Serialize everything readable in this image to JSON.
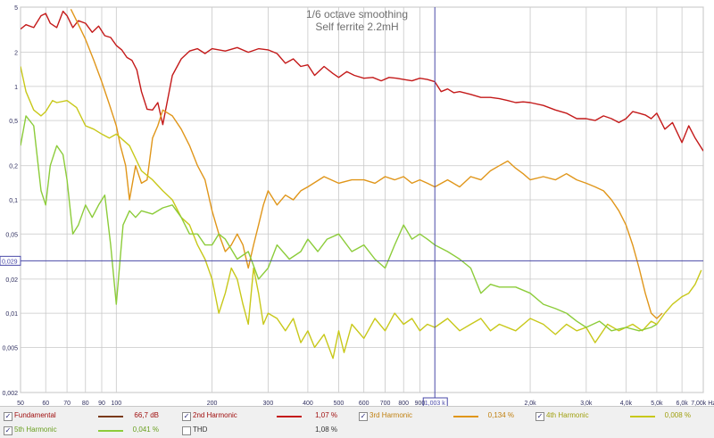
{
  "title": "1/6 octave smoothing",
  "subtitle": "Self ferrite 2.2mH",
  "colors": {
    "fundamental": "#b01212",
    "h2": "#c41a1a",
    "h3": "#e0961a",
    "h4": "#c8c81a",
    "h5": "#8ccc3a",
    "grid": "#c8c8c8",
    "cursor": "#4a4aa8",
    "label": "#2f2f5f",
    "title": "#707070"
  },
  "cursor": {
    "x_label": "1,003 k",
    "y_label": "0,029"
  },
  "legend": [
    {
      "name": "Fundamental",
      "value": "66,7 dB",
      "checked": true,
      "color": "#7a3a1a"
    },
    {
      "name": "2nd Harmonic",
      "value": "1,07 %",
      "checked": true,
      "color": "#c41a1a"
    },
    {
      "name": "3rd Harmonic",
      "value": "0,134 %",
      "checked": true,
      "color": "#e0961a"
    },
    {
      "name": "4th Harmonic",
      "value": "0,008 %",
      "checked": true,
      "color": "#c8c81a"
    },
    {
      "name": "5th Harmonic",
      "value": "0,041 %",
      "checked": true,
      "color": "#8ccc3a"
    },
    {
      "name": "THD",
      "value": "1,08 %",
      "checked": false,
      "color": "#333333"
    }
  ],
  "chart_data": {
    "type": "line",
    "title": "1/6 octave smoothing",
    "subtitle": "Self ferrite 2.2mH",
    "xscale": "log",
    "yscale": "log",
    "xlim": [
      50,
      7000
    ],
    "ylim": [
      0.002,
      5
    ],
    "xunit": "Hz",
    "grid": true,
    "x_ticks": [
      {
        "v": 50,
        "l": "50"
      },
      {
        "v": 60,
        "l": "60"
      },
      {
        "v": 70,
        "l": "70"
      },
      {
        "v": 80,
        "l": "80"
      },
      {
        "v": 90,
        "l": "90"
      },
      {
        "v": 100,
        "l": "100"
      },
      {
        "v": 200,
        "l": "200"
      },
      {
        "v": 300,
        "l": "300"
      },
      {
        "v": 400,
        "l": "400"
      },
      {
        "v": 500,
        "l": "500"
      },
      {
        "v": 600,
        "l": "600"
      },
      {
        "v": 700,
        "l": "700"
      },
      {
        "v": 800,
        "l": "800"
      },
      {
        "v": 900,
        "l": "900"
      },
      {
        "v": 2000,
        "l": "2,0k"
      },
      {
        "v": 3000,
        "l": "3,0k"
      },
      {
        "v": 4000,
        "l": "4,0k"
      },
      {
        "v": 5000,
        "l": "5,0k"
      },
      {
        "v": 6000,
        "l": "6,0k"
      },
      {
        "v": 7000,
        "l": "7,00k Hz"
      }
    ],
    "y_ticks": [
      {
        "v": 5,
        "l": "5"
      },
      {
        "v": 2,
        "l": "2"
      },
      {
        "v": 1,
        "l": "1"
      },
      {
        "v": 0.5,
        "l": "0,5"
      },
      {
        "v": 0.2,
        "l": "0,2"
      },
      {
        "v": 0.1,
        "l": "0,1"
      },
      {
        "v": 0.05,
        "l": "0,05"
      },
      {
        "v": 0.02,
        "l": "0,02"
      },
      {
        "v": 0.01,
        "l": "0,01"
      },
      {
        "v": 0.005,
        "l": "0,005"
      },
      {
        "v": 0.002,
        "l": "0,002"
      }
    ],
    "cursor_x": 1003,
    "cursor_y": 0.029,
    "series": [
      {
        "name": "2nd Harmonic",
        "color": "#c41a1a",
        "x": [
          50,
          52,
          55,
          58,
          60,
          62,
          65,
          68,
          70,
          73,
          76,
          80,
          84,
          88,
          92,
          96,
          100,
          104,
          108,
          112,
          116,
          120,
          125,
          130,
          135,
          140,
          150,
          160,
          170,
          180,
          190,
          200,
          220,
          240,
          260,
          280,
          300,
          320,
          340,
          360,
          380,
          400,
          420,
          450,
          480,
          500,
          530,
          560,
          600,
          640,
          680,
          720,
          760,
          800,
          850,
          900,
          950,
          1003,
          1050,
          1100,
          1150,
          1200,
          1300,
          1400,
          1500,
          1600,
          1700,
          1800,
          1900,
          2000,
          2200,
          2400,
          2600,
          2800,
          3000,
          3200,
          3400,
          3600,
          3800,
          4000,
          4200,
          4400,
          4600,
          4800,
          5000,
          5300,
          5600,
          6000,
          6300,
          6600,
          7000
        ],
        "y": [
          3.2,
          3.5,
          3.3,
          4.2,
          4.4,
          3.6,
          3.3,
          4.6,
          4.2,
          3.3,
          3.8,
          3.6,
          3.0,
          3.4,
          2.8,
          2.7,
          2.3,
          2.1,
          1.8,
          1.7,
          1.4,
          0.9,
          0.63,
          0.62,
          0.72,
          0.46,
          1.25,
          1.75,
          2.05,
          2.15,
          1.95,
          2.15,
          2.05,
          2.2,
          2.0,
          2.15,
          2.1,
          1.95,
          1.6,
          1.75,
          1.5,
          1.55,
          1.25,
          1.5,
          1.3,
          1.2,
          1.35,
          1.25,
          1.18,
          1.2,
          1.12,
          1.2,
          1.18,
          1.15,
          1.12,
          1.18,
          1.15,
          1.1,
          0.9,
          0.95,
          0.88,
          0.9,
          0.85,
          0.8,
          0.8,
          0.78,
          0.75,
          0.72,
          0.73,
          0.72,
          0.68,
          0.62,
          0.58,
          0.52,
          0.52,
          0.5,
          0.55,
          0.52,
          0.48,
          0.52,
          0.6,
          0.58,
          0.56,
          0.52,
          0.58,
          0.42,
          0.48,
          0.32,
          0.45,
          0.35,
          0.27
        ]
      },
      {
        "name": "3rd Harmonic",
        "color": "#e0961a",
        "x": [
          72,
          75,
          80,
          85,
          90,
          95,
          100,
          103,
          107,
          110,
          115,
          120,
          125,
          130,
          135,
          140,
          150,
          160,
          170,
          180,
          190,
          200,
          210,
          220,
          230,
          240,
          250,
          260,
          270,
          280,
          290,
          300,
          320,
          340,
          360,
          380,
          400,
          450,
          500,
          550,
          600,
          650,
          700,
          750,
          800,
          850,
          900,
          950,
          1003,
          1100,
          1200,
          1300,
          1400,
          1500,
          1600,
          1700,
          1800,
          1900,
          2000,
          2200,
          2400,
          2600,
          2800,
          3000,
          3200,
          3400,
          3600,
          3800,
          4000,
          4200,
          4400,
          4600,
          4800,
          5000,
          5200
        ],
        "y": [
          4.8,
          3.8,
          2.6,
          1.7,
          1.1,
          0.7,
          0.45,
          0.3,
          0.2,
          0.1,
          0.2,
          0.14,
          0.15,
          0.35,
          0.45,
          0.62,
          0.55,
          0.42,
          0.3,
          0.2,
          0.15,
          0.08,
          0.05,
          0.035,
          0.04,
          0.05,
          0.04,
          0.025,
          0.04,
          0.06,
          0.09,
          0.12,
          0.09,
          0.11,
          0.1,
          0.12,
          0.13,
          0.16,
          0.14,
          0.15,
          0.15,
          0.14,
          0.16,
          0.15,
          0.16,
          0.14,
          0.15,
          0.14,
          0.13,
          0.15,
          0.13,
          0.16,
          0.15,
          0.18,
          0.2,
          0.22,
          0.19,
          0.17,
          0.15,
          0.16,
          0.15,
          0.17,
          0.15,
          0.14,
          0.13,
          0.12,
          0.1,
          0.08,
          0.06,
          0.04,
          0.025,
          0.015,
          0.01,
          0.009,
          0.01
        ]
      },
      {
        "name": "4th Harmonic",
        "color": "#c8c81a",
        "x": [
          50,
          52,
          55,
          58,
          60,
          63,
          65,
          70,
          75,
          80,
          85,
          90,
          95,
          100,
          110,
          120,
          130,
          140,
          150,
          160,
          170,
          180,
          190,
          200,
          210,
          220,
          230,
          240,
          250,
          260,
          270,
          280,
          290,
          300,
          320,
          340,
          360,
          380,
          400,
          420,
          450,
          480,
          500,
          520,
          550,
          600,
          650,
          700,
          750,
          800,
          850,
          900,
          950,
          1003,
          1100,
          1200,
          1300,
          1400,
          1500,
          1600,
          1800,
          2000,
          2200,
          2400,
          2600,
          2800,
          3000,
          3200,
          3500,
          3800,
          4000,
          4200,
          4500,
          4800,
          5000,
          5300,
          5600,
          6000,
          6300,
          6600,
          6900
        ],
        "y": [
          1.5,
          0.9,
          0.62,
          0.55,
          0.6,
          0.75,
          0.72,
          0.75,
          0.65,
          0.45,
          0.42,
          0.38,
          0.35,
          0.38,
          0.3,
          0.18,
          0.15,
          0.12,
          0.1,
          0.07,
          0.06,
          0.04,
          0.03,
          0.02,
          0.01,
          0.015,
          0.025,
          0.02,
          0.012,
          0.008,
          0.025,
          0.015,
          0.008,
          0.01,
          0.009,
          0.007,
          0.009,
          0.0055,
          0.007,
          0.005,
          0.0065,
          0.004,
          0.007,
          0.0045,
          0.008,
          0.006,
          0.009,
          0.007,
          0.01,
          0.008,
          0.009,
          0.007,
          0.008,
          0.0075,
          0.009,
          0.007,
          0.008,
          0.009,
          0.007,
          0.008,
          0.007,
          0.009,
          0.008,
          0.0065,
          0.008,
          0.007,
          0.0075,
          0.0055,
          0.008,
          0.007,
          0.0075,
          0.008,
          0.007,
          0.0085,
          0.008,
          0.01,
          0.012,
          0.014,
          0.015,
          0.018,
          0.024
        ]
      },
      {
        "name": "5th Harmonic",
        "color": "#8ccc3a",
        "x": [
          50,
          52,
          55,
          58,
          60,
          62,
          65,
          68,
          70,
          73,
          76,
          80,
          84,
          88,
          92,
          96,
          100,
          105,
          110,
          115,
          120,
          130,
          140,
          150,
          160,
          170,
          180,
          190,
          200,
          210,
          220,
          240,
          260,
          280,
          300,
          320,
          350,
          380,
          400,
          430,
          460,
          500,
          550,
          600,
          650,
          700,
          750,
          800,
          850,
          900,
          950,
          1003,
          1100,
          1200,
          1300,
          1400,
          1500,
          1600,
          1800,
          2000,
          2200,
          2400,
          2600,
          2800,
          3000,
          3300,
          3600,
          4000,
          4400,
          4800,
          5000
        ],
        "y": [
          0.3,
          0.55,
          0.45,
          0.12,
          0.09,
          0.2,
          0.3,
          0.25,
          0.15,
          0.05,
          0.06,
          0.09,
          0.07,
          0.09,
          0.11,
          0.04,
          0.012,
          0.06,
          0.08,
          0.07,
          0.08,
          0.075,
          0.085,
          0.09,
          0.07,
          0.05,
          0.05,
          0.04,
          0.04,
          0.05,
          0.045,
          0.03,
          0.035,
          0.02,
          0.025,
          0.04,
          0.03,
          0.035,
          0.045,
          0.035,
          0.045,
          0.05,
          0.035,
          0.04,
          0.03,
          0.025,
          0.04,
          0.06,
          0.045,
          0.05,
          0.045,
          0.04,
          0.035,
          0.03,
          0.025,
          0.015,
          0.018,
          0.017,
          0.017,
          0.015,
          0.012,
          0.011,
          0.01,
          0.0085,
          0.0075,
          0.0085,
          0.007,
          0.0075,
          0.007,
          0.0075,
          0.008
        ]
      }
    ]
  }
}
